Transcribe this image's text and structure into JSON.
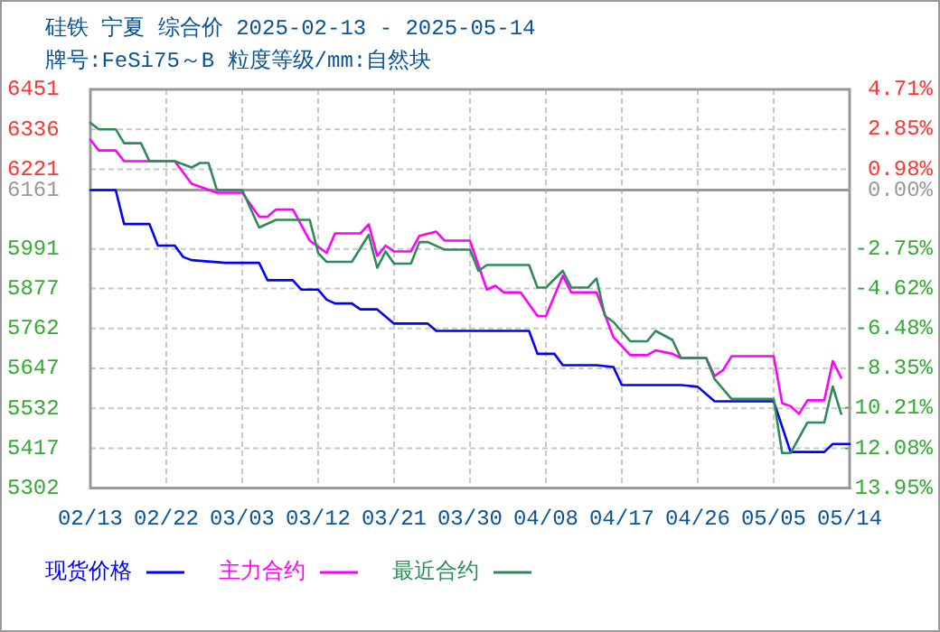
{
  "chart_data": {
    "type": "line",
    "title": "硅铁 宁夏 综合价 2025-02-13 - 2025-05-14",
    "subtitle": "牌号:FeSi75～B 粒度等级/mm:自然块",
    "xlim": [
      "--02-13",
      "--05-14"
    ],
    "xticks": [
      {
        "value": "--02-13",
        "label": "02/13"
      },
      {
        "value": "--02-22",
        "label": "02/22"
      },
      {
        "value": "--03-03",
        "label": "03/03"
      },
      {
        "value": "--03-12",
        "label": "03/12"
      },
      {
        "value": "--03-21",
        "label": "03/21"
      },
      {
        "value": "--03-30",
        "label": "03/30"
      },
      {
        "value": "--04-08",
        "label": "04/08"
      },
      {
        "value": "--04-17",
        "label": "04/17"
      },
      {
        "value": "--04-26",
        "label": "04/26"
      },
      {
        "value": "--05-05",
        "label": "05/05"
      },
      {
        "value": "--05-14",
        "label": "05/14"
      }
    ],
    "ylim": [
      5302,
      6451
    ],
    "yticks": [
      6451,
      6336,
      6221,
      6161,
      5991,
      5877,
      5762,
      5647,
      5532,
      5417,
      5302
    ],
    "y2lim": [
      -13.95,
      4.71
    ],
    "y2ticks": [
      {
        "value": 4.71,
        "label": "4.71%"
      },
      {
        "value": 2.85,
        "label": "2.85%"
      },
      {
        "value": 0.98,
        "label": "0.98%"
      },
      {
        "value": 0,
        "label": "0.00%"
      },
      {
        "value": -2.75,
        "label": "-2.75%"
      },
      {
        "value": -4.62,
        "label": "-4.62%"
      },
      {
        "value": -6.48,
        "label": "-6.48%"
      },
      {
        "value": -8.35,
        "label": "-8.35%"
      },
      {
        "value": -10.21,
        "label": "-10.21%"
      },
      {
        "value": -12.08,
        "label": "-12.08%"
      },
      {
        "value": -13.95,
        "label": "-13.95%"
      }
    ],
    "ref_lines": [
      {
        "axis": "y",
        "value": 6161,
        "color": "#999999"
      }
    ],
    "grid": true,
    "legend": "bottom",
    "line_style": "solid",
    "series": [
      {
        "name": "现货价格",
        "color": "#0000ff",
        "x": [
          "--02-13",
          "--02-16",
          "--02-17",
          "--02-20",
          "--02-21",
          "--02-23",
          "--02-24",
          "--02-25",
          "--03-01",
          "--03-05",
          "--03-06",
          "--03-09",
          "--03-10",
          "--03-12",
          "--03-13",
          "--03-14",
          "--03-16",
          "--03-17",
          "--03-19",
          "--03-21",
          "--03-25",
          "--03-26",
          "--04-06",
          "--04-07",
          "--04-09",
          "--04-10",
          "--04-14",
          "--04-16",
          "--04-17",
          "--04-24",
          "--04-26",
          "--04-28",
          "--05-05",
          "--05-07",
          "--05-11",
          "--05-12",
          "--05-14"
        ],
        "values": [
          6161,
          6161,
          6063,
          6063,
          6001,
          6001,
          5968,
          5959,
          5951,
          5951,
          5901,
          5901,
          5874,
          5874,
          5845,
          5834,
          5834,
          5817,
          5817,
          5776,
          5776,
          5755,
          5755,
          5689,
          5689,
          5656,
          5656,
          5651,
          5599,
          5599,
          5594,
          5552,
          5552,
          5406,
          5406,
          5429,
          5429
        ]
      },
      {
        "name": "主力合约",
        "color": "#ff00ff",
        "x": [
          "--02-13",
          "--02-14",
          "--02-16",
          "--02-17",
          "--02-23",
          "--02-25",
          "--02-28",
          "--03-03",
          "--03-05",
          "--03-06",
          "--03-07",
          "--03-09",
          "--03-11",
          "--03-13",
          "--03-14",
          "--03-17",
          "--03-18",
          "--03-19",
          "--03-20",
          "--03-21",
          "--03-23",
          "--03-24",
          "--03-26",
          "--03-27",
          "--03-30",
          "--04-01",
          "--04-02",
          "--04-03",
          "--04-05",
          "--04-07",
          "--04-08",
          "--04-10",
          "--04-11",
          "--04-14",
          "--04-16",
          "--04-18",
          "--04-20",
          "--04-21",
          "--04-23",
          "--04-24",
          "--04-27",
          "--04-28",
          "--04-29",
          "--04-30",
          "--05-05",
          "--05-06",
          "--05-07",
          "--05-08",
          "--05-09",
          "--05-11",
          "--05-12",
          "--05-13"
        ],
        "values": [
          6306,
          6275,
          6275,
          6244,
          6244,
          6179,
          6153,
          6153,
          6084,
          6084,
          6105,
          6105,
          6015,
          5980,
          6036,
          6036,
          6062,
          5971,
          6001,
          5984,
          5984,
          6029,
          6041,
          6015,
          6015,
          5874,
          5885,
          5866,
          5866,
          5798,
          5798,
          5914,
          5866,
          5866,
          5737,
          5685,
          5685,
          5699,
          5689,
          5677,
          5677,
          5625,
          5642,
          5682,
          5682,
          5547,
          5538,
          5516,
          5555,
          5555,
          5668,
          5620
        ]
      },
      {
        "name": "最近合约",
        "color": "#2e8b57",
        "x": [
          "--02-13",
          "--02-14",
          "--02-16",
          "--02-17",
          "--02-19",
          "--02-20",
          "--02-23",
          "--02-25",
          "--02-26",
          "--02-27",
          "--02-28",
          "--03-03",
          "--03-05",
          "--03-07",
          "--03-11",
          "--03-12",
          "--03-13",
          "--03-16",
          "--03-18",
          "--03-19",
          "--03-20",
          "--03-21",
          "--03-23",
          "--03-24",
          "--03-25",
          "--03-27",
          "--03-30",
          "--03-31",
          "--04-01",
          "--04-06",
          "--04-07",
          "--04-08",
          "--04-10",
          "--04-11",
          "--04-13",
          "--04-14",
          "--04-15",
          "--04-16",
          "--04-18",
          "--04-20",
          "--04-21",
          "--04-23",
          "--04-24",
          "--04-27",
          "--04-28",
          "--04-30",
          "--05-05",
          "--05-06",
          "--05-07",
          "--05-09",
          "--05-11",
          "--05-12",
          "--05-13"
        ],
        "values": [
          6355,
          6336,
          6336,
          6296,
          6296,
          6244,
          6244,
          6226,
          6239,
          6239,
          6161,
          6161,
          6053,
          6075,
          6075,
          5980,
          5954,
          5954,
          6032,
          5937,
          5984,
          5949,
          5949,
          6011,
          6011,
          5989,
          5989,
          5928,
          5945,
          5945,
          5880,
          5880,
          5928,
          5880,
          5880,
          5906,
          5798,
          5781,
          5725,
          5725,
          5755,
          5729,
          5677,
          5677,
          5616,
          5559,
          5559,
          5403,
          5403,
          5491,
          5491,
          5595,
          5516
        ]
      }
    ]
  }
}
